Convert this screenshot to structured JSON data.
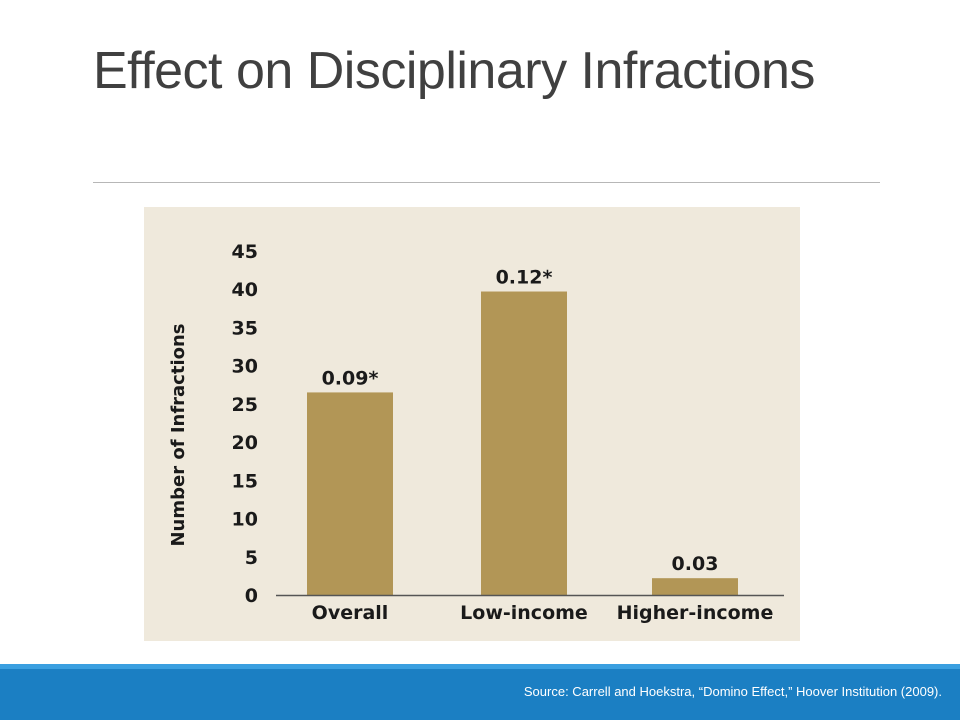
{
  "slide": {
    "title": "Effect on Disciplinary Infractions",
    "source": "Source:  Carrell and Hoekstra, “Domino Effect,” Hoover Institution (2009)."
  },
  "colors": {
    "panel_background": "#efe9dc",
    "bar": "#b29656",
    "axis": "#555555",
    "footer": "#1b7fc3"
  },
  "chart_data": {
    "type": "bar",
    "title": "",
    "xlabel": "",
    "ylabel": "Number of Infractions",
    "ylim": [
      0,
      45
    ],
    "yticks": [
      0,
      5,
      10,
      15,
      20,
      25,
      30,
      35,
      40,
      45
    ],
    "grid": false,
    "categories": [
      "Overall",
      "Low-income",
      "Higher-income"
    ],
    "values": [
      26.5,
      39.7,
      2.2
    ],
    "data_labels": [
      "0.09*",
      "0.12*",
      "0.03"
    ]
  }
}
